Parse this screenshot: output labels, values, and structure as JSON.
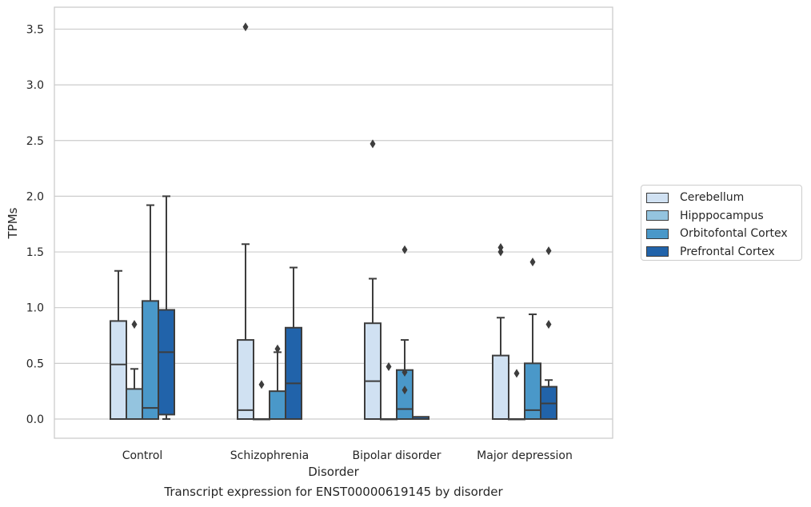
{
  "chart_data": {
    "type": "boxplot",
    "title": "",
    "caption": "Transcript expression for ENST00000619145 by disorder",
    "xlabel": "Disorder",
    "ylabel": "TPMs",
    "ylim": [
      -0.17,
      3.7
    ],
    "yticks": [
      0.0,
      0.5,
      1.0,
      1.5,
      2.0,
      2.5,
      3.0,
      3.5
    ],
    "ytick_labels": [
      "0.0",
      "0.5",
      "1.0",
      "1.5",
      "2.0",
      "2.5",
      "3.0",
      "3.5"
    ],
    "grid": "horizontal",
    "legend_position": "right",
    "categories": [
      "Control",
      "Schizophrenia",
      "Bipolar disorder",
      "Major depression"
    ],
    "series": [
      {
        "name": "Cerebellum",
        "color": "#d0e1f2",
        "boxes": [
          {
            "whislo": 0.0,
            "q1": 0.0,
            "med": 0.49,
            "q3": 0.88,
            "whishi": 1.33,
            "fliers": []
          },
          {
            "whislo": 0.0,
            "q1": 0.0,
            "med": 0.08,
            "q3": 0.71,
            "whishi": 1.57,
            "fliers": [
              3.52
            ]
          },
          {
            "whislo": 0.0,
            "q1": 0.0,
            "med": 0.34,
            "q3": 0.86,
            "whishi": 1.26,
            "fliers": [
              2.47
            ]
          },
          {
            "whislo": 0.0,
            "q1": 0.0,
            "med": 0.0,
            "q3": 0.57,
            "whishi": 0.91,
            "fliers": [
              1.5,
              1.54
            ]
          }
        ]
      },
      {
        "name": "Hipppocampus",
        "color": "#94c4df",
        "boxes": [
          {
            "whislo": 0.0,
            "q1": 0.0,
            "med": 0.0,
            "q3": 0.27,
            "whishi": 0.45,
            "fliers": [
              0.85
            ]
          },
          {
            "whislo": 0.0,
            "q1": 0.0,
            "med": 0.0,
            "q3": 0.0,
            "whishi": 0.0,
            "fliers": [
              0.31
            ]
          },
          {
            "whislo": 0.0,
            "q1": 0.0,
            "med": 0.0,
            "q3": 0.0,
            "whishi": 0.0,
            "fliers": [
              0.47
            ]
          },
          {
            "whislo": 0.0,
            "q1": 0.0,
            "med": 0.0,
            "q3": 0.0,
            "whishi": 0.0,
            "fliers": [
              0.41
            ]
          }
        ]
      },
      {
        "name": "Orbitofontal Cortex",
        "color": "#4a98c9",
        "boxes": [
          {
            "whislo": 0.0,
            "q1": 0.0,
            "med": 0.1,
            "q3": 1.06,
            "whishi": 1.92,
            "fliers": []
          },
          {
            "whislo": 0.0,
            "q1": 0.0,
            "med": 0.0,
            "q3": 0.25,
            "whishi": 0.6,
            "fliers": [
              0.63
            ]
          },
          {
            "whislo": 0.0,
            "q1": 0.0,
            "med": 0.09,
            "q3": 0.44,
            "whishi": 0.71,
            "fliers": [
              0.26,
              0.42,
              1.52
            ]
          },
          {
            "whislo": 0.0,
            "q1": 0.0,
            "med": 0.08,
            "q3": 0.5,
            "whishi": 0.94,
            "fliers": [
              1.41
            ]
          }
        ]
      },
      {
        "name": "Prefrontal Cortex",
        "color": "#2163aa",
        "boxes": [
          {
            "whislo": 0.0,
            "q1": 0.04,
            "med": 0.6,
            "q3": 0.98,
            "whishi": 2.0,
            "fliers": []
          },
          {
            "whislo": 0.0,
            "q1": 0.0,
            "med": 0.32,
            "q3": 0.82,
            "whishi": 1.36,
            "fliers": []
          },
          {
            "whislo": 0.0,
            "q1": 0.0,
            "med": 0.0,
            "q3": 0.02,
            "whishi": 0.02,
            "fliers": []
          },
          {
            "whislo": 0.0,
            "q1": 0.0,
            "med": 0.14,
            "q3": 0.29,
            "whishi": 0.35,
            "fliers": [
              0.85,
              1.51
            ]
          }
        ]
      }
    ]
  }
}
